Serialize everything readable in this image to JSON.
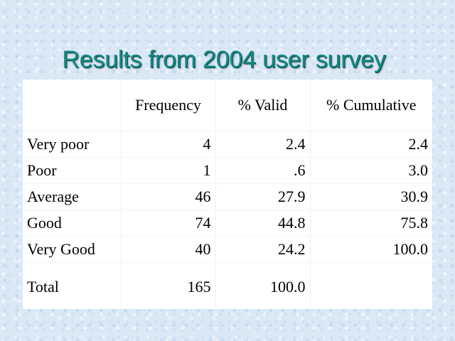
{
  "title": "Results from 2004 user survey",
  "table": {
    "headers": [
      "",
      "Frequency",
      "% Valid",
      "% Cumulative"
    ],
    "rows": [
      {
        "label": "Very poor",
        "frequency": "4",
        "valid": "2.4",
        "cumulative": "2.4"
      },
      {
        "label": "Poor",
        "frequency": "1",
        "valid": ".6",
        "cumulative": "3.0"
      },
      {
        "label": "Average",
        "frequency": "46",
        "valid": "27.9",
        "cumulative": "30.9"
      },
      {
        "label": "Good",
        "frequency": "74",
        "valid": "44.8",
        "cumulative": "75.8"
      },
      {
        "label": "Very Good",
        "frequency": "40",
        "valid": "24.2",
        "cumulative": "100.0"
      }
    ],
    "total": {
      "label": "Total",
      "frequency": "165",
      "valid": "100.0",
      "cumulative": ""
    }
  },
  "colors": {
    "title": "#138a85",
    "background": "#dbe8f6",
    "table_background": "#ffffff"
  }
}
